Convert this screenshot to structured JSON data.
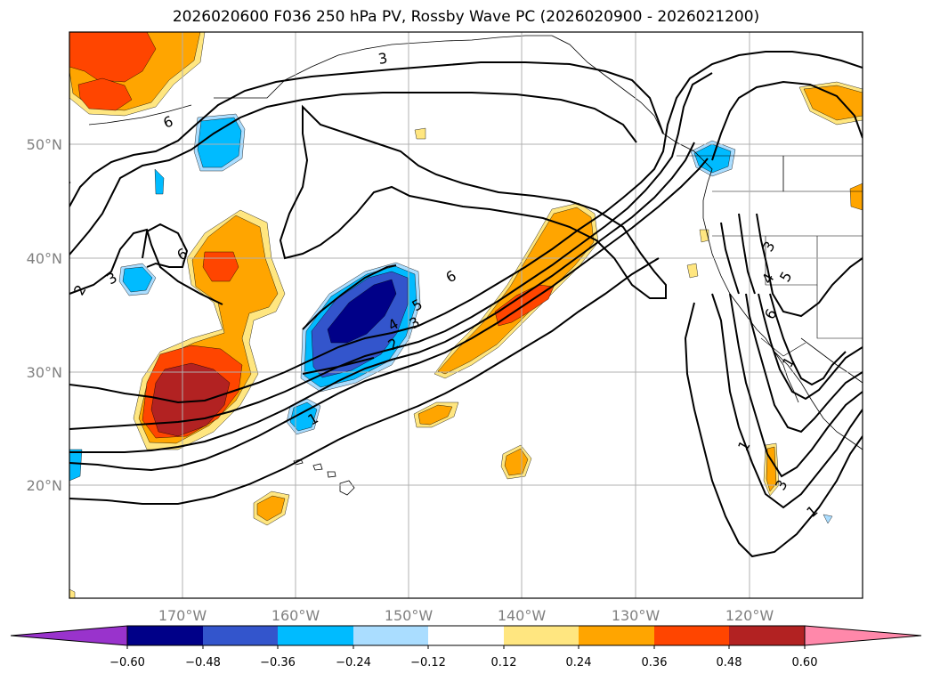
{
  "title": "2026020600 F036 250 hPa PV, Rossby Wave PC (2026020900 - 2026021200)",
  "latitude_labels": [
    "50°N",
    "40°N",
    "30°N",
    "20°N"
  ],
  "longitude_labels": [
    "170°W",
    "160°W",
    "150°W",
    "140°W",
    "130°W",
    "120°W"
  ],
  "contour_labels": [
    "6",
    "6",
    "4",
    "3",
    "2",
    "3",
    "6",
    "5",
    "4",
    "3",
    "2",
    "1",
    "6",
    "5",
    "4",
    "3",
    "1",
    "1",
    "3",
    "1"
  ],
  "colorbar": {
    "ticks": [
      "−0.60",
      "−0.48",
      "−0.36",
      "−0.24",
      "−0.12",
      "0.12",
      "0.24",
      "0.36",
      "0.48",
      "0.60"
    ],
    "colors": [
      "#9933cc",
      "#000088",
      "#3355cc",
      "#00bbff",
      "#aaddff",
      "#ffffff",
      "#ffe680",
      "#ffa500",
      "#ff4500",
      "#b22222",
      "#ff88aa"
    ]
  },
  "fill_colors": {
    "pos1": "#ffe680",
    "pos2": "#ffa500",
    "pos3": "#ff4500",
    "pos4": "#b22222",
    "neg1": "#aaddff",
    "neg2": "#00bbff",
    "neg3": "#3355cc",
    "neg4": "#000088"
  }
}
